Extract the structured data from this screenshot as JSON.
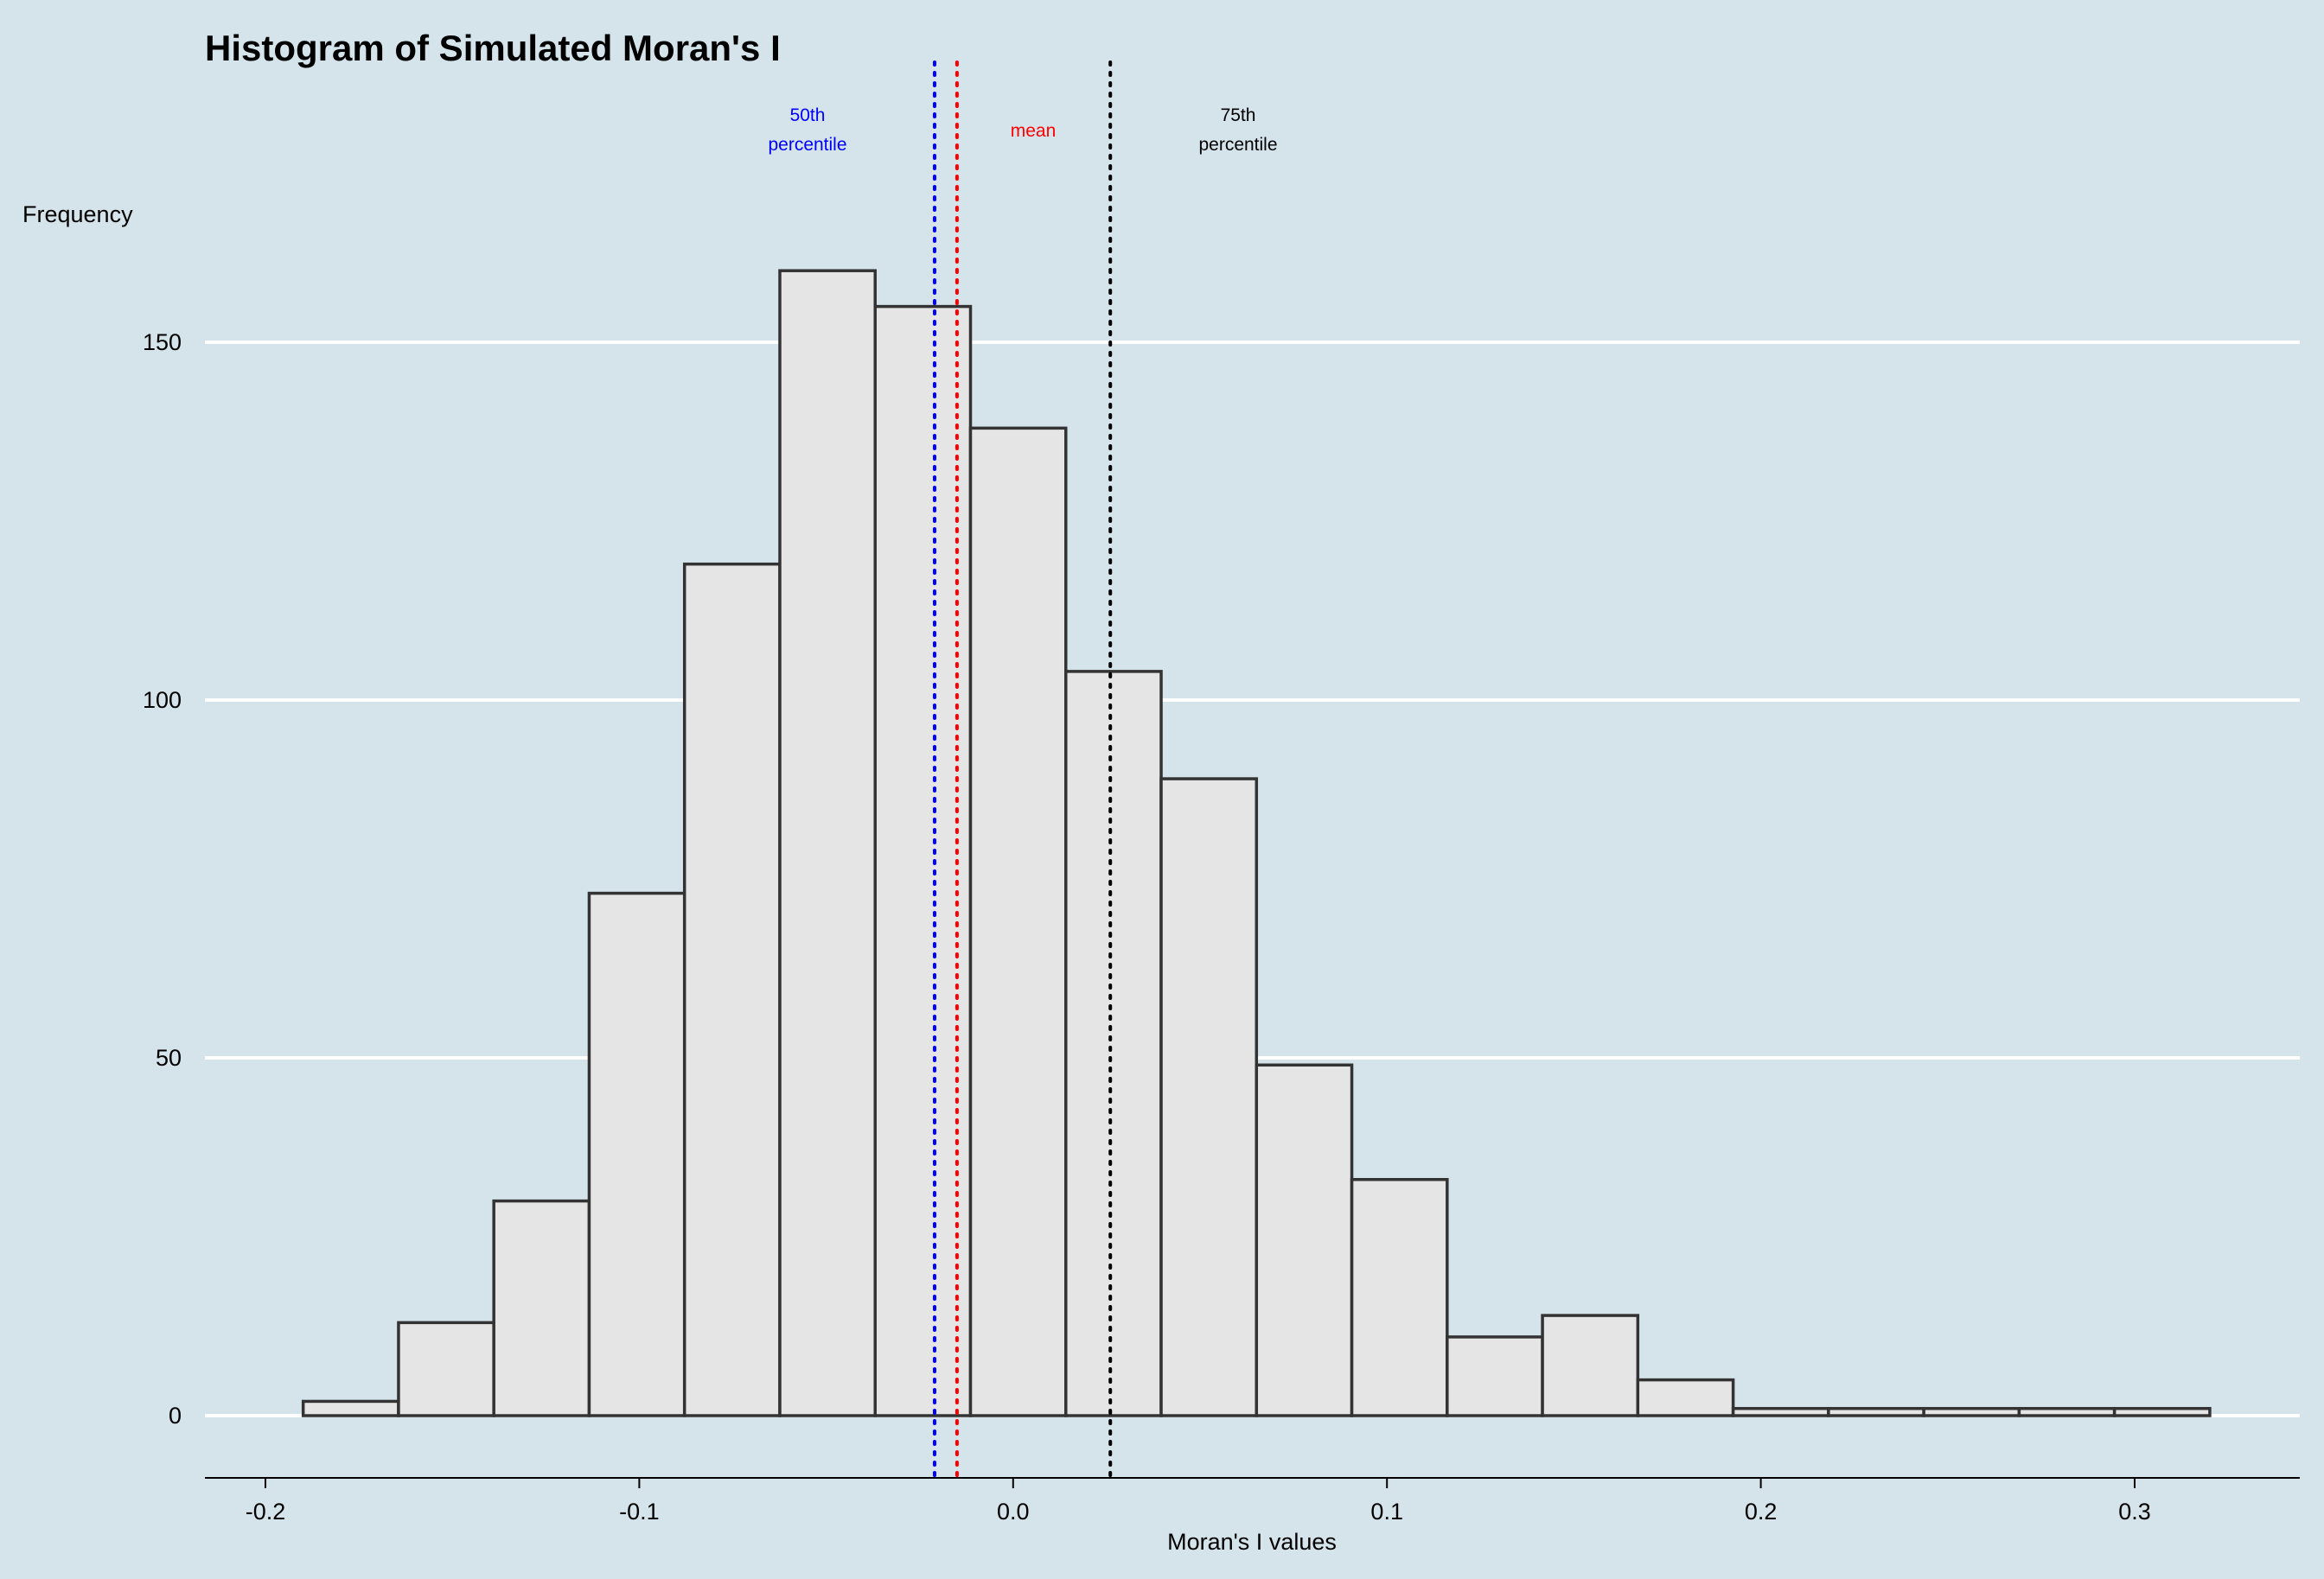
{
  "colors": {
    "background": "#d5e4eb",
    "gridline": "#ffffff",
    "bar_fill": "#e5e5e5",
    "bar_stroke": "#333333",
    "median_line": "#0000ff",
    "mean_line": "#ff0000",
    "p75_line": "#000000"
  },
  "chart_data": {
    "type": "bar",
    "title": "Histogram of Simulated Moran's I",
    "xlabel": "Moran's I values",
    "ylabel": "Frequency",
    "xlim": [
      -0.2,
      0.3
    ],
    "ylim": [
      0,
      160
    ],
    "grid": "horizontal",
    "x_ticks": [
      -0.2,
      -0.1,
      0.0,
      0.1,
      0.2,
      0.3
    ],
    "x_tick_labels": [
      "-0.2",
      "-0.1",
      "0.0",
      "0.1",
      "0.2",
      "0.3"
    ],
    "y_ticks": [
      0,
      50,
      100,
      150
    ],
    "y_tick_labels": [
      "0",
      "50",
      "100",
      "150"
    ],
    "bin_edges": [
      -0.1899,
      -0.1644,
      -0.1389,
      -0.1134,
      -0.0879,
      -0.0624,
      -0.0369,
      -0.0114,
      0.0141,
      0.0396,
      0.0651,
      0.0906,
      0.1161,
      0.1416,
      0.1671,
      0.1926,
      0.2181,
      0.2436,
      0.2691,
      0.2946,
      0.3201
    ],
    "values": [
      2,
      13,
      30,
      73,
      119,
      160,
      155,
      138,
      104,
      89,
      49,
      33,
      11,
      14,
      5,
      1,
      1,
      1,
      1,
      1
    ],
    "reference_lines": [
      {
        "name": "50th percentile",
        "label_lines": [
          "50th",
          "percentile"
        ],
        "x": -0.021,
        "color": "#0000ff"
      },
      {
        "name": "mean",
        "label_lines": [
          "mean"
        ],
        "x": -0.015,
        "color": "#ff0000"
      },
      {
        "name": "75th percentile",
        "label_lines": [
          "75th",
          "percentile"
        ],
        "x": 0.026,
        "color": "#000000"
      }
    ]
  }
}
